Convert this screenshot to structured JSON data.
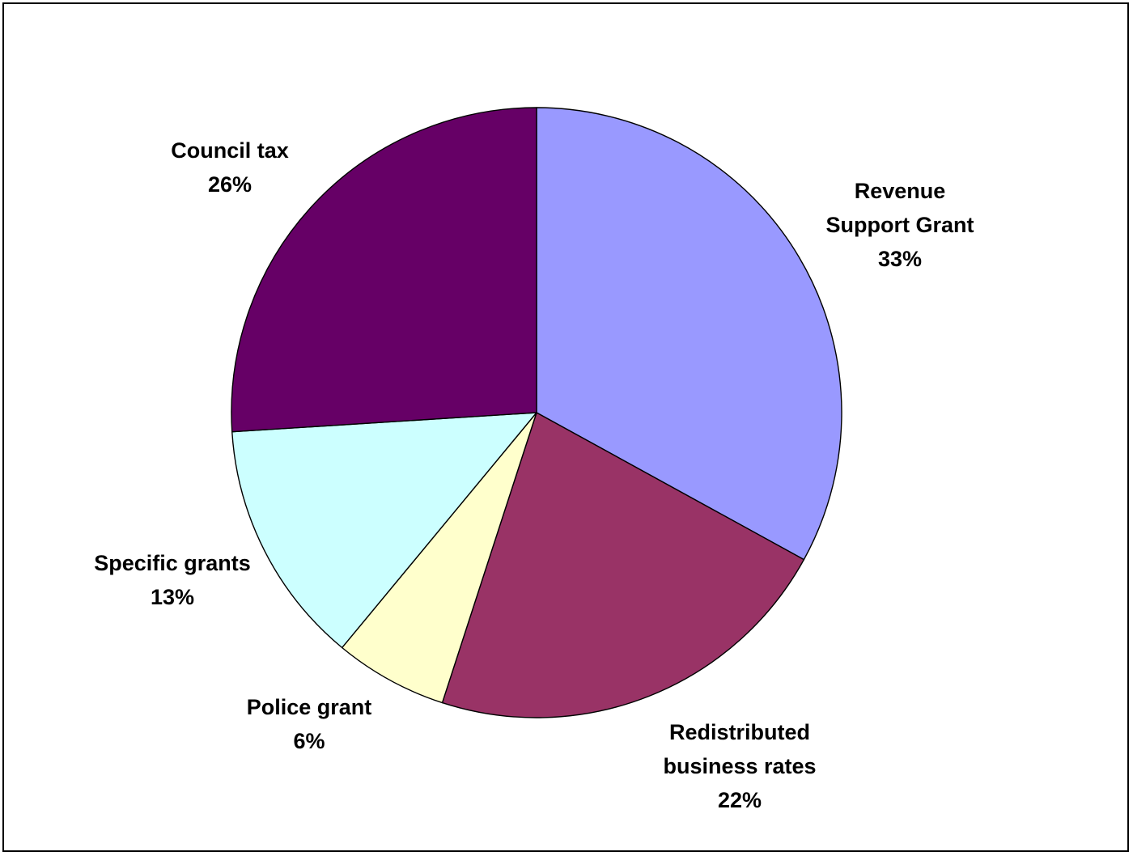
{
  "chart_data": {
    "type": "pie",
    "title": "",
    "start_angle_deg": 0,
    "direction": "clockwise",
    "legend": "none",
    "slices": [
      {
        "name": "Revenue Support Grant",
        "label_lines": [
          "Revenue",
          "Support Grant"
        ],
        "value": 33,
        "value_label": "33%",
        "color": "#9999ff"
      },
      {
        "name": "Redistributed business rates",
        "label_lines": [
          "Redistributed",
          "business rates"
        ],
        "value": 22,
        "value_label": "22%",
        "color": "#993366"
      },
      {
        "name": "Police grant",
        "label_lines": [
          "Police grant"
        ],
        "value": 6,
        "value_label": "6%",
        "color": "#ffffcc"
      },
      {
        "name": "Specific grants",
        "label_lines": [
          "Specific grants"
        ],
        "value": 13,
        "value_label": "13%",
        "color": "#ccffff"
      },
      {
        "name": "Council tax",
        "label_lines": [
          "Council tax"
        ],
        "value": 26,
        "value_label": "26%",
        "color": "#660066"
      }
    ]
  }
}
